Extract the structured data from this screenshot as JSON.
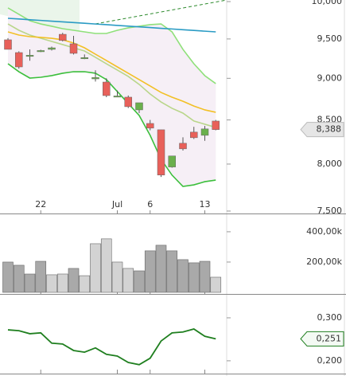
{
  "chart_data": [
    {
      "type": "candlestick",
      "categories": [
        null,
        null,
        null,
        "22",
        null,
        null,
        null,
        null,
        null,
        null,
        "Jul",
        null,
        null,
        "6",
        null,
        null,
        null,
        null,
        "13",
        null
      ],
      "open": [
        9489,
        9324,
        9283,
        9344,
        9365,
        9561,
        9437,
        9253,
        8993,
        8954,
        8779,
        8770,
        8618,
        8459,
        8386,
        7968,
        8232,
        8359,
        8322,
        8487
      ],
      "high": [
        9510,
        9340,
        9365,
        9360,
        9400,
        9580,
        9540,
        9300,
        9100,
        9000,
        8850,
        8790,
        8703,
        8500,
        8386,
        8090,
        8300,
        8420,
        8430,
        8500
      ],
      "low": [
        9365,
        9120,
        9220,
        9330,
        9350,
        9468,
        9300,
        9240,
        8960,
        8770,
        8770,
        8640,
        8580,
        8380,
        7860,
        7960,
        8150,
        8280,
        8260,
        8380
      ],
      "close": [
        9365,
        9142,
        9290,
        9350,
        9385,
        9480,
        9314,
        9260,
        9010,
        8789,
        8785,
        8656,
        8703,
        8405,
        7880,
        8090,
        8169,
        8295,
        8396,
        8388
      ],
      "up_color": "#6ab04c",
      "down_color": "#e8605a",
      "band_fill": "#f6eff6",
      "series": [
        {
          "color": "#8fe07a",
          "values": [
            9913,
            9827,
            9741,
            9698,
            9667,
            9635,
            9614,
            9593,
            9572,
            9572,
            9614,
            9646,
            9667,
            9688,
            9698,
            9593,
            9365,
            9182,
            9033,
            8935
          ]
        },
        {
          "color": "#3cbf3c",
          "values": [
            9182,
            9082,
            9003,
            9013,
            9033,
            9063,
            9082,
            9082,
            9063,
            8984,
            8838,
            8694,
            8552,
            8322,
            8052,
            7880,
            7758,
            7775,
            7809,
            7826
          ]
        },
        {
          "color": "#b9d68a",
          "values": [
            9698,
            9614,
            9551,
            9509,
            9468,
            9427,
            9385,
            9344,
            9263,
            9182,
            9103,
            9023,
            8925,
            8808,
            8712,
            8637,
            8580,
            8487,
            8450,
            8413
          ]
        },
        {
          "color": "#f2c026",
          "values": [
            9593,
            9551,
            9530,
            9520,
            9509,
            9489,
            9447,
            9385,
            9303,
            9223,
            9142,
            9063,
            8984,
            8906,
            8827,
            8770,
            8721,
            8664,
            8618,
            8590
          ]
        },
        {
          "color": "#2a9bc4",
          "values": [
            9773,
            9764,
            9754,
            9745,
            9735,
            9726,
            9716,
            9707,
            9697,
            9688,
            9678,
            9669,
            9659,
            9650,
            9640,
            9631,
            9621,
            9612,
            9602,
            9593
          ]
        }
      ],
      "log": true,
      "ylim": [
        7475,
        10022
      ],
      "yticks": [
        {
          "value": 10000,
          "label": "10,000"
        },
        {
          "value": 9500,
          "label": "9,500"
        },
        {
          "value": 9000,
          "label": "9,000"
        },
        {
          "value": 8500,
          "label": "8,500"
        },
        {
          "value": 8000,
          "label": "8,000"
        },
        {
          "value": 7500,
          "label": "7,500"
        }
      ],
      "current_label": "8,388"
    },
    {
      "type": "bar",
      "values": [
        200000,
        179000,
        121000,
        205000,
        116000,
        121000,
        158000,
        110000,
        321000,
        353000,
        200000,
        158000,
        142000,
        274000,
        311000,
        274000,
        216000,
        195000,
        205000,
        100000
      ],
      "colors": [
        "#a9a9a9",
        "#a9a9a9",
        "#a9a9a9",
        "#a9a9a9",
        "#d3d3d3",
        "#d3d3d3",
        "#a9a9a9",
        "#d3d3d3",
        "#d3d3d3",
        "#d3d3d3",
        "#d3d3d3",
        "#d3d3d3",
        "#a9a9a9",
        "#a9a9a9",
        "#a9a9a9",
        "#a9a9a9",
        "#a9a9a9",
        "#a9a9a9",
        "#a9a9a9",
        "#d3d3d3"
      ],
      "ylim": [
        0,
        510000
      ],
      "yticks": [
        {
          "value": 400000,
          "label": "400,00k"
        },
        {
          "value": 200000,
          "label": "200,00k"
        }
      ]
    },
    {
      "type": "line",
      "color": "#1f7f1f",
      "values": [
        0.272,
        0.27,
        0.263,
        0.265,
        0.241,
        0.239,
        0.224,
        0.22,
        0.23,
        0.215,
        0.211,
        0.196,
        0.191,
        0.206,
        0.246,
        0.265,
        0.267,
        0.274,
        0.257,
        0.251
      ],
      "ylim": [
        0.172,
        0.35
      ],
      "yticks": [
        {
          "value": 0.3,
          "label": "0,300"
        },
        {
          "value": 0.2,
          "label": "0,200"
        }
      ],
      "current_label": "0,251"
    }
  ]
}
